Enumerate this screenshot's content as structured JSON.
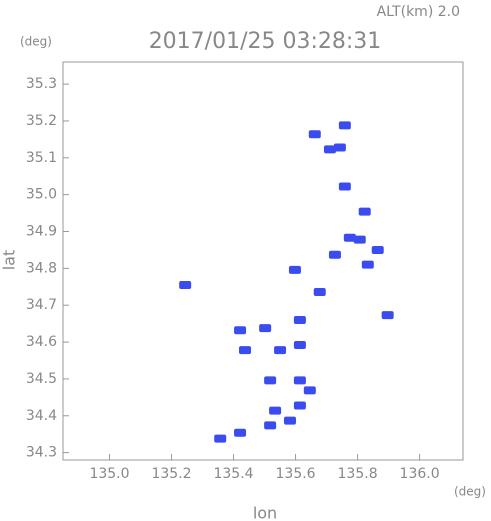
{
  "chart_data": {
    "type": "scatter",
    "title": "2017/01/25 03:28:31",
    "subtitle": "ALT(km) 2.0",
    "y_unit": "(deg)",
    "x_unit": "(deg)",
    "x_label": "lon",
    "y_label": "lat",
    "xlim": [
      134.85,
      136.14
    ],
    "ylim": [
      34.28,
      35.36
    ],
    "xticks": [
      {
        "value": 135,
        "label": "135.0"
      },
      135.2,
      135.4,
      135.6,
      135.8,
      {
        "value": 136,
        "label": "136.0"
      }
    ],
    "yticks": [
      34.3,
      34.4,
      34.5,
      34.6,
      34.7,
      34.8,
      34.9,
      {
        "value": 35,
        "label": "35.0"
      },
      35.1,
      35.2,
      35.3
    ],
    "series": [
      {
        "color": "#3a4cf0",
        "x": [
          135.759,
          135.662,
          135.711,
          135.743,
          135.759,
          135.823,
          135.775,
          135.807,
          135.865,
          135.727,
          135.833,
          135.598,
          135.244,
          135.678,
          135.897,
          135.421,
          135.502,
          135.614,
          135.437,
          135.55,
          135.614,
          135.518,
          135.614,
          135.646,
          135.534,
          135.614,
          135.518,
          135.421,
          135.357,
          135.582
        ],
        "values": [
          35.188,
          35.164,
          35.123,
          35.128,
          35.022,
          34.954,
          34.883,
          34.878,
          34.85,
          34.837,
          34.81,
          34.796,
          34.755,
          34.736,
          34.673,
          34.632,
          34.638,
          34.66,
          34.578,
          34.578,
          34.592,
          34.496,
          34.496,
          34.469,
          34.414,
          34.428,
          34.374,
          34.354,
          34.338,
          34.387
        ]
      }
    ]
  }
}
